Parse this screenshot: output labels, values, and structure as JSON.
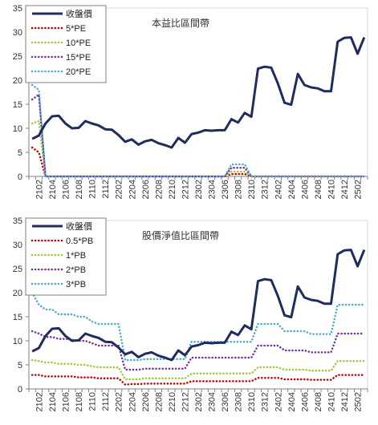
{
  "chart_data": [
    {
      "type": "line",
      "title": "本益比區間帶",
      "xlabel": "",
      "ylabel": "",
      "ylim": [
        0,
        35
      ],
      "yticks": [
        0,
        5,
        10,
        15,
        20,
        25,
        30,
        35
      ],
      "grid": false,
      "legend_position": "top-left",
      "x": [
        "2101",
        "2102",
        "2103",
        "2104",
        "2105",
        "2106",
        "2107",
        "2108",
        "2109",
        "2110",
        "2111",
        "2112",
        "2201",
        "2202",
        "2203",
        "2204",
        "2205",
        "2206",
        "2207",
        "2208",
        "2209",
        "2210",
        "2211",
        "2212",
        "2301",
        "2302",
        "2303",
        "2304",
        "2305",
        "2306",
        "2307",
        "2308",
        "2309",
        "2310",
        "2311",
        "2312",
        "2401",
        "2402",
        "2403",
        "2404",
        "2405",
        "2406",
        "2407",
        "2408",
        "2409",
        "2410",
        "2411",
        "2412",
        "2501",
        "2502",
        "2503"
      ],
      "xtick_labels": [
        "2102",
        "2104",
        "2106",
        "2108",
        "2110",
        "2112",
        "2202",
        "2204",
        "2206",
        "2208",
        "2210",
        "2212",
        "2302",
        "2304",
        "2306",
        "2308",
        "2310",
        "2312",
        "2402",
        "2404",
        "2406",
        "2408",
        "2410",
        "2412",
        "2502"
      ],
      "series": [
        {
          "name": "收盤價",
          "color": "#1f2d5e",
          "style": "solid",
          "values": [
            7.8,
            8.5,
            11.0,
            12.5,
            12.6,
            11.0,
            10.0,
            10.1,
            11.5,
            11.0,
            10.6,
            9.8,
            9.7,
            8.6,
            7.2,
            7.7,
            6.6,
            7.3,
            7.6,
            6.9,
            6.5,
            6.0,
            8.0,
            7.0,
            8.8,
            9.1,
            9.6,
            9.5,
            9.6,
            9.6,
            11.9,
            11.2,
            13.2,
            12.4,
            22.4,
            22.8,
            22.6,
            19.3,
            15.3,
            14.9,
            21.3,
            19.0,
            18.5,
            18.3,
            17.7,
            17.7,
            28.0,
            28.8,
            28.9,
            25.5,
            28.9
          ]
        },
        {
          "name": "5*PE",
          "color": "#c00000",
          "style": "dotted",
          "values": [
            6.0,
            5.0,
            0,
            0,
            0,
            0,
            0,
            0,
            0,
            0,
            0,
            0,
            0,
            0,
            0,
            0,
            0,
            0,
            0,
            0,
            0,
            0,
            0,
            0,
            0,
            0,
            0,
            0,
            0,
            0,
            0.5,
            0.5,
            0.5,
            0,
            0,
            0,
            0,
            0,
            0,
            0,
            0,
            0,
            0,
            0,
            0,
            0,
            0,
            0,
            0,
            0,
            0
          ]
        },
        {
          "name": "10*PE",
          "color": "#9acd32",
          "style": "dotted",
          "values": [
            11.0,
            11.5,
            0,
            0,
            0,
            0,
            0,
            0,
            0,
            0,
            0,
            0,
            0,
            0,
            0,
            0,
            0,
            0,
            0,
            0,
            0,
            0,
            0,
            0,
            0,
            0,
            0,
            0,
            0,
            0,
            1.0,
            1.0,
            1.0,
            0,
            0,
            0,
            0,
            0,
            0,
            0,
            0,
            0,
            0,
            0,
            0,
            0,
            0,
            0,
            0,
            0,
            0
          ]
        },
        {
          "name": "15*PE",
          "color": "#7030a0",
          "style": "dotted",
          "values": [
            16.0,
            17.0,
            0,
            0,
            0,
            0,
            0,
            0,
            0,
            0,
            0,
            0,
            0,
            0,
            0,
            0,
            0,
            0,
            0,
            0,
            0,
            0,
            0,
            0,
            0,
            0,
            0,
            0,
            0,
            0,
            1.8,
            1.8,
            1.8,
            0,
            0,
            0,
            0,
            0,
            0,
            0,
            0,
            0,
            0,
            0,
            0,
            0,
            0,
            0,
            0,
            0,
            0
          ]
        },
        {
          "name": "20*PE",
          "color": "#4bacc6",
          "style": "dotted",
          "values": [
            19.0,
            18.0,
            0,
            0,
            0,
            0,
            0,
            0,
            0,
            0,
            0,
            0,
            0,
            0,
            0,
            0,
            0,
            0,
            0,
            0,
            0,
            0,
            0,
            0,
            0,
            0,
            0,
            0,
            0,
            0,
            2.5,
            2.5,
            2.5,
            0,
            0,
            0,
            0,
            0,
            0,
            0,
            0,
            0,
            0,
            0,
            0,
            0,
            0,
            0,
            0,
            0,
            0
          ]
        }
      ]
    },
    {
      "type": "line",
      "title": "股價淨值比區間帶",
      "xlabel": "",
      "ylabel": "",
      "ylim": [
        0,
        35
      ],
      "yticks": [
        0,
        5,
        10,
        15,
        20,
        25,
        30,
        35
      ],
      "grid": false,
      "legend_position": "top-left",
      "x": [
        "2101",
        "2102",
        "2103",
        "2104",
        "2105",
        "2106",
        "2107",
        "2108",
        "2109",
        "2110",
        "2111",
        "2112",
        "2201",
        "2202",
        "2203",
        "2204",
        "2205",
        "2206",
        "2207",
        "2208",
        "2209",
        "2210",
        "2211",
        "2212",
        "2301",
        "2302",
        "2303",
        "2304",
        "2305",
        "2306",
        "2307",
        "2308",
        "2309",
        "2310",
        "2311",
        "2312",
        "2401",
        "2402",
        "2403",
        "2404",
        "2405",
        "2406",
        "2407",
        "2408",
        "2409",
        "2410",
        "2411",
        "2412",
        "2501",
        "2502",
        "2503"
      ],
      "xtick_labels": [
        "2102",
        "2104",
        "2106",
        "2108",
        "2110",
        "2112",
        "2202",
        "2204",
        "2206",
        "2208",
        "2210",
        "2212",
        "2302",
        "2304",
        "2306",
        "2308",
        "2310",
        "2312",
        "2402",
        "2404",
        "2406",
        "2408",
        "2410",
        "2412",
        "2502"
      ],
      "series": [
        {
          "name": "收盤價",
          "color": "#1f2d5e",
          "style": "solid",
          "values": [
            7.8,
            8.5,
            11.0,
            12.5,
            12.6,
            11.0,
            10.0,
            10.1,
            11.5,
            11.0,
            10.6,
            9.8,
            9.7,
            8.6,
            7.2,
            7.7,
            6.6,
            7.3,
            7.6,
            6.9,
            6.5,
            6.0,
            8.0,
            7.0,
            8.8,
            9.1,
            9.6,
            9.5,
            9.6,
            9.6,
            11.9,
            11.2,
            13.2,
            12.4,
            22.4,
            22.8,
            22.6,
            19.3,
            15.3,
            14.9,
            21.3,
            19.0,
            18.5,
            18.3,
            17.7,
            17.7,
            28.0,
            28.8,
            28.9,
            25.5,
            28.9
          ]
        },
        {
          "name": "0.5*PB",
          "color": "#c00000",
          "style": "dotted",
          "values": [
            2.9,
            2.9,
            2.6,
            2.6,
            2.6,
            2.6,
            2.6,
            2.4,
            2.4,
            2.4,
            2.2,
            2.2,
            2.2,
            2.2,
            0.9,
            1.0,
            1.0,
            1.1,
            1.1,
            1.1,
            1.1,
            1.1,
            1.1,
            1.1,
            1.6,
            1.6,
            1.6,
            1.6,
            1.6,
            1.6,
            1.6,
            1.6,
            1.6,
            1.6,
            2.3,
            2.3,
            2.3,
            2.3,
            2.0,
            2.0,
            2.0,
            2.0,
            1.9,
            1.9,
            1.9,
            1.9,
            2.9,
            2.9,
            2.9,
            2.9,
            2.9
          ]
        },
        {
          "name": "1*PB",
          "color": "#9acd32",
          "style": "dotted",
          "values": [
            6.0,
            5.8,
            5.5,
            5.5,
            5.2,
            5.2,
            5.2,
            5.0,
            5.0,
            4.7,
            4.5,
            4.5,
            4.5,
            4.5,
            2.0,
            2.0,
            2.0,
            2.2,
            2.2,
            2.2,
            2.2,
            2.2,
            2.2,
            2.2,
            3.2,
            3.2,
            3.2,
            3.2,
            3.2,
            3.2,
            3.2,
            3.2,
            3.2,
            3.2,
            4.5,
            4.5,
            4.5,
            4.5,
            4.0,
            4.0,
            4.0,
            4.0,
            3.8,
            3.8,
            3.8,
            3.8,
            5.8,
            5.8,
            5.8,
            5.8,
            5.8
          ]
        },
        {
          "name": "2*PB",
          "color": "#7030a0",
          "style": "dotted",
          "values": [
            12.0,
            11.5,
            10.8,
            10.8,
            10.4,
            10.4,
            10.2,
            10.0,
            10.0,
            9.5,
            9.0,
            9.0,
            9.0,
            9.0,
            4.0,
            4.0,
            4.0,
            4.2,
            4.2,
            4.2,
            4.2,
            4.2,
            4.2,
            4.2,
            6.5,
            6.5,
            6.5,
            6.5,
            6.5,
            6.5,
            6.5,
            6.5,
            6.5,
            6.5,
            9.0,
            9.0,
            9.0,
            9.0,
            8.0,
            8.0,
            8.0,
            8.0,
            7.6,
            7.6,
            7.6,
            7.6,
            11.5,
            11.5,
            11.5,
            11.5,
            11.5
          ]
        },
        {
          "name": "3*PB",
          "color": "#4bacc6",
          "style": "dotted",
          "values": [
            20.0,
            17.5,
            16.5,
            16.5,
            15.5,
            15.5,
            15.5,
            15.0,
            15.0,
            14.0,
            13.5,
            13.5,
            13.5,
            13.5,
            6.0,
            6.0,
            6.0,
            6.2,
            6.2,
            6.2,
            6.2,
            6.2,
            6.2,
            6.2,
            9.8,
            9.8,
            9.8,
            9.8,
            9.8,
            9.8,
            9.8,
            9.8,
            9.8,
            9.8,
            13.5,
            13.5,
            13.5,
            13.5,
            12.0,
            12.0,
            12.0,
            12.0,
            11.4,
            11.4,
            11.4,
            11.4,
            17.5,
            17.5,
            17.5,
            17.5,
            17.5
          ]
        }
      ]
    }
  ]
}
